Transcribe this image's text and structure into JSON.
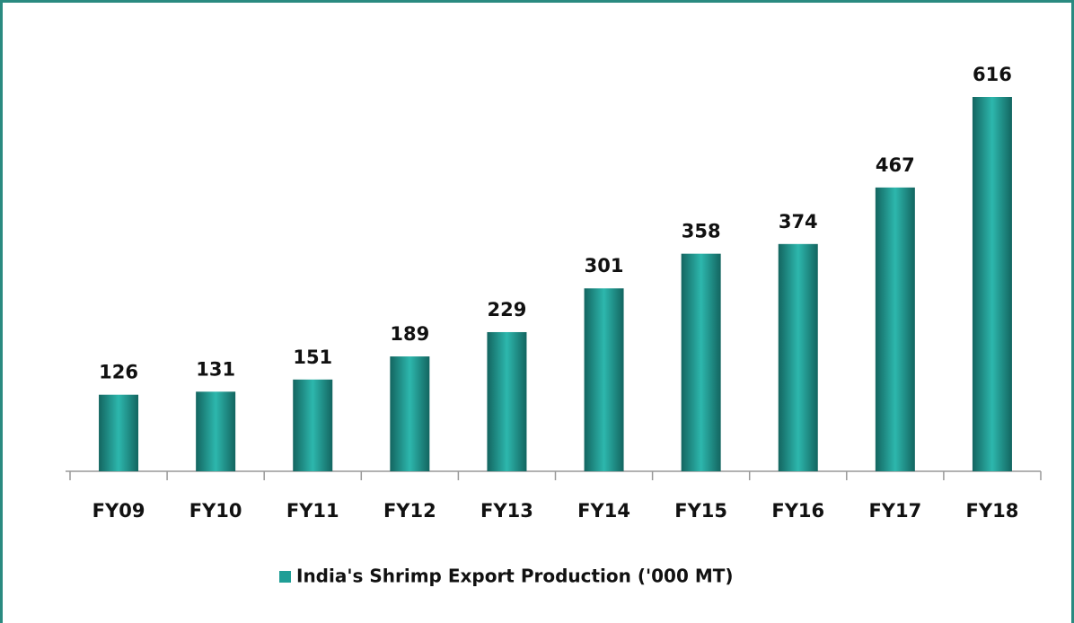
{
  "chart_data": {
    "type": "bar",
    "categories": [
      "FY09",
      "FY10",
      "FY11",
      "FY12",
      "FY13",
      "FY14",
      "FY15",
      "FY16",
      "FY17",
      "FY18"
    ],
    "series": [
      {
        "name": "India's Shrimp Export Production ('000 MT)",
        "color": "#1f9e96",
        "values": [
          126,
          131,
          151,
          189,
          229,
          301,
          358,
          374,
          467,
          616
        ]
      }
    ],
    "legend": "bottom"
  }
}
